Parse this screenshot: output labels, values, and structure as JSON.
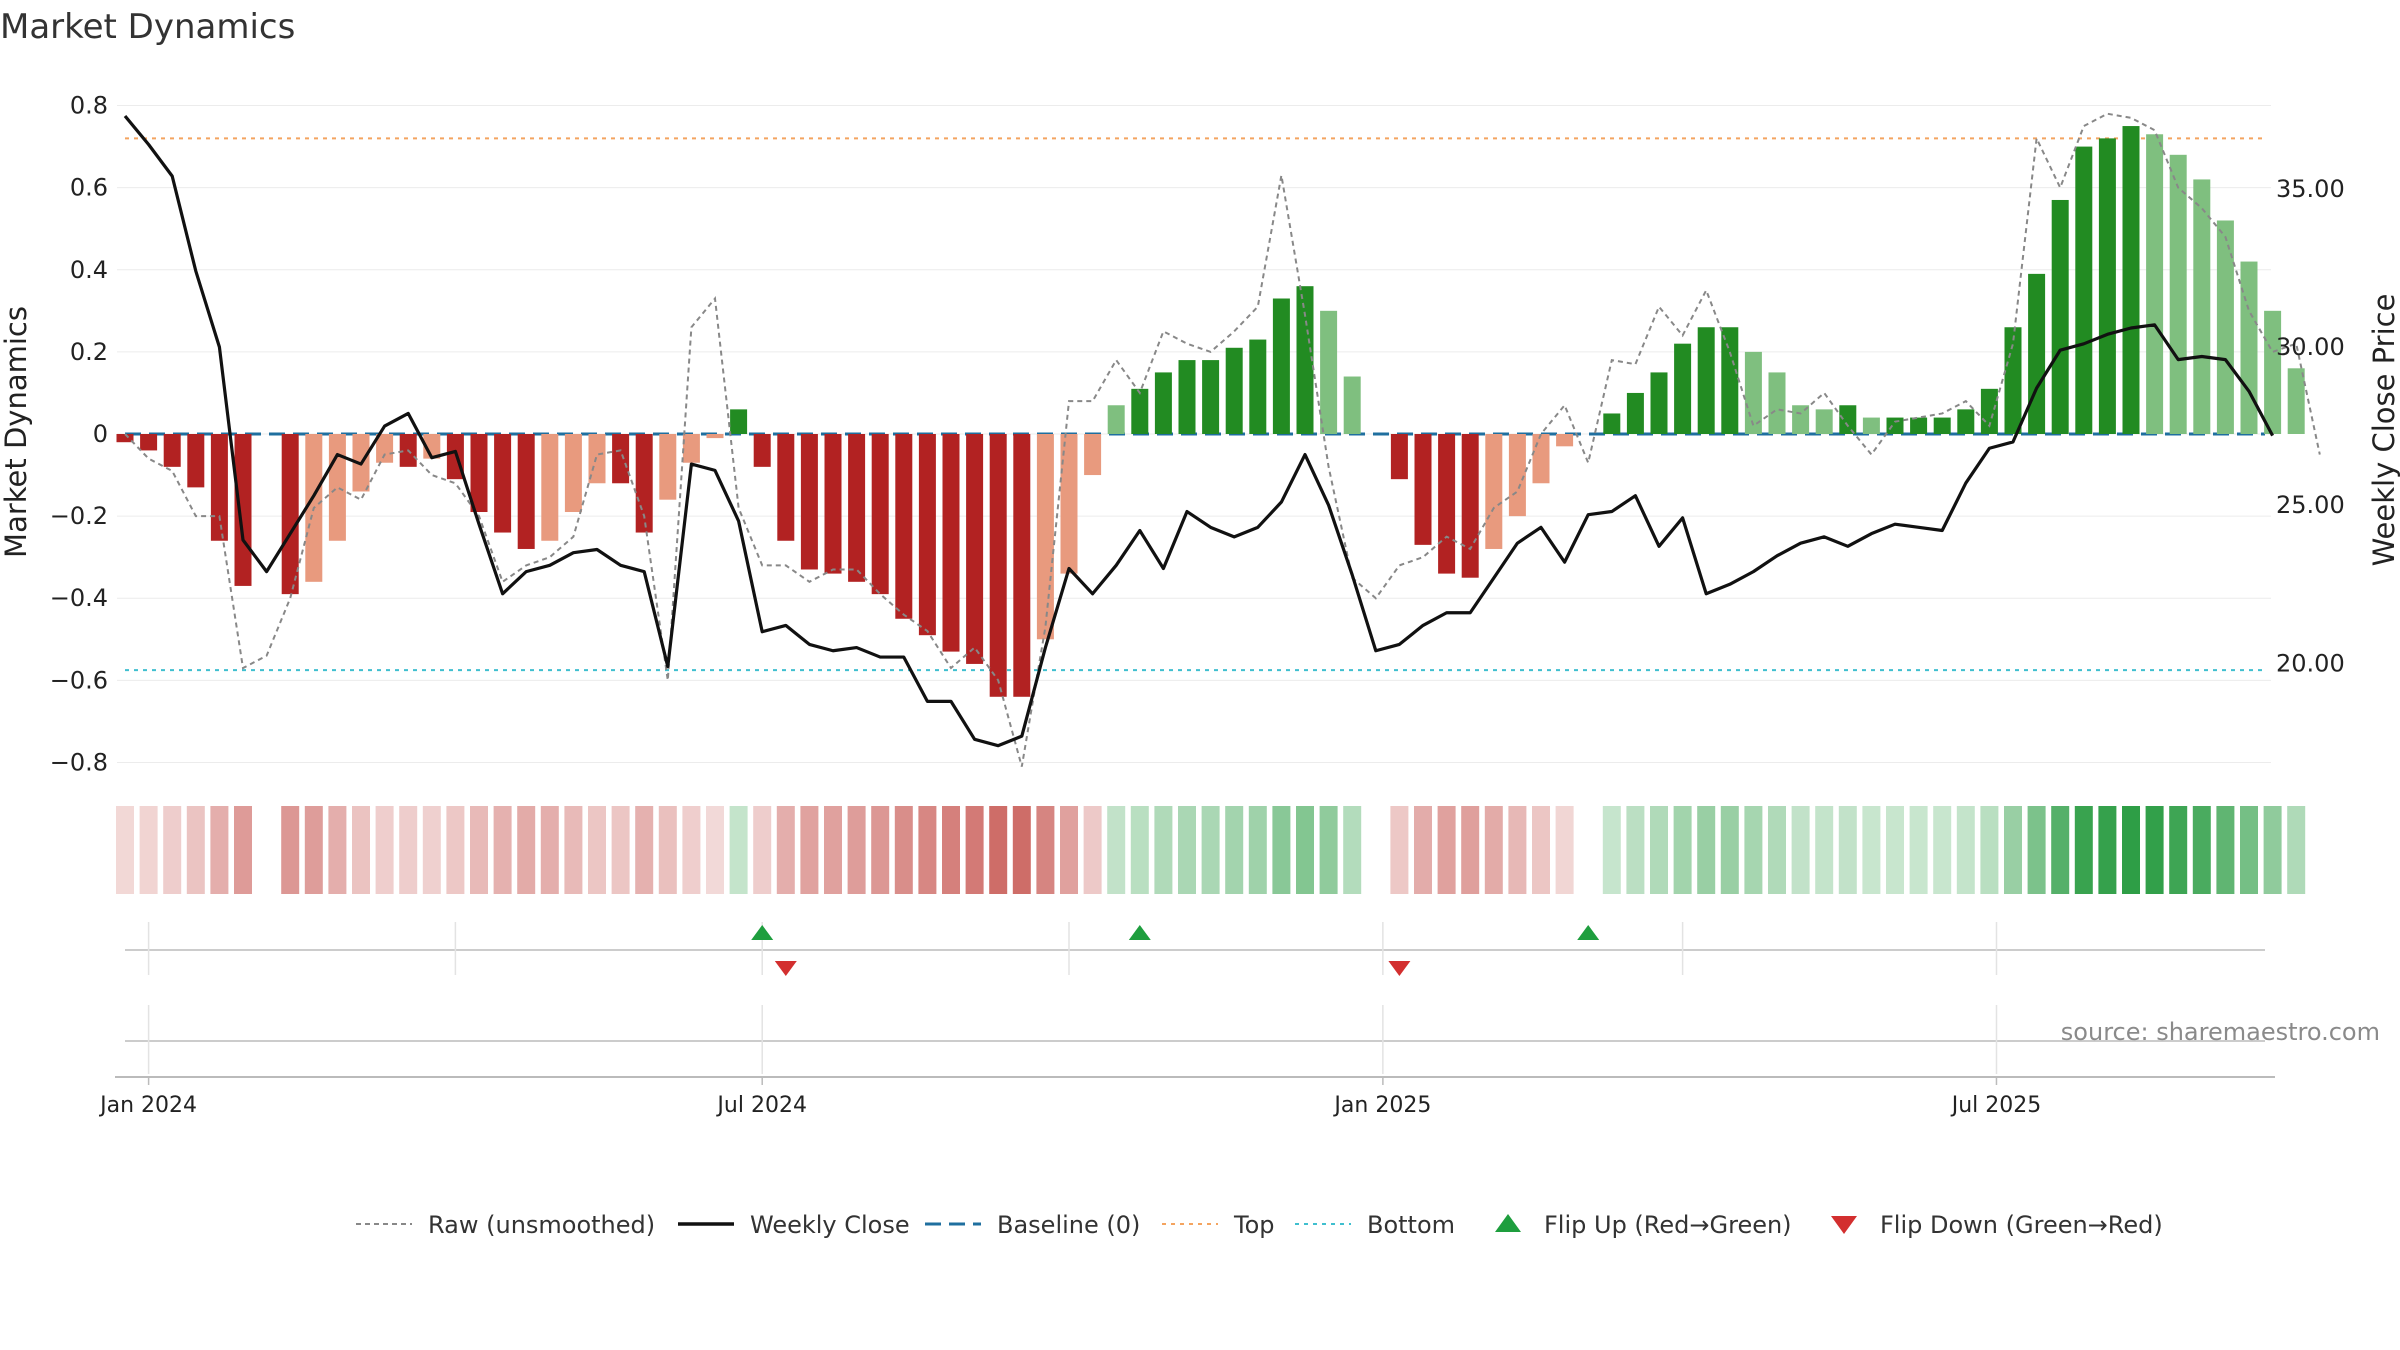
{
  "chart_data": {
    "type": "bar",
    "title": "Market Dynamics",
    "ylabel": "Market Dynamics",
    "y2label": "Weekly Close Price",
    "ylim": [
      -0.85,
      0.85
    ],
    "y2lim": [
      16.22,
      38.28
    ],
    "yticks": [
      "0.8",
      "0.6",
      "0.4",
      "0.2",
      "0",
      "−0.2",
      "−0.4",
      "−0.6",
      "−0.8"
    ],
    "yticks_values": [
      0.8,
      0.6,
      0.4,
      0.2,
      0,
      -0.2,
      -0.4,
      -0.6,
      -0.8
    ],
    "y2ticks": [
      "35.00",
      "30.00",
      "25.00",
      "20.00"
    ],
    "y2ticks_values": [
      35,
      30,
      25,
      20
    ],
    "top_level": 0.72,
    "bottom_level": -0.575,
    "baseline": 0,
    "x_start_week": -1,
    "x_ticks": [
      {
        "label": "Jan 2024",
        "week": 0
      },
      {
        "label": "Jul 2024",
        "week": 26
      },
      {
        "label": "Jan 2025",
        "week": 52.3
      },
      {
        "label": "Jul 2025",
        "week": 78.3
      }
    ],
    "series": [
      {
        "name": "Market Dynamics (smoothed)",
        "values": [
          -0.02,
          -0.04,
          -0.08,
          -0.13,
          -0.26,
          -0.37,
          0,
          -0.39,
          -0.36,
          -0.26,
          -0.14,
          -0.07,
          -0.08,
          -0.06,
          -0.11,
          -0.19,
          -0.24,
          -0.28,
          -0.26,
          -0.19,
          -0.12,
          -0.12,
          -0.24,
          -0.16,
          -0.07,
          -0.01,
          0.06,
          -0.08,
          -0.26,
          -0.33,
          -0.34,
          -0.36,
          -0.39,
          -0.45,
          -0.49,
          -0.53,
          -0.56,
          -0.64,
          -0.64,
          -0.5,
          -0.34,
          -0.1,
          0.07,
          0.11,
          0.15,
          0.18,
          0.18,
          0.21,
          0.23,
          0.33,
          0.36,
          0.3,
          0.14,
          0,
          -0.11,
          -0.27,
          -0.34,
          -0.35,
          -0.28,
          -0.2,
          -0.12,
          -0.03,
          0,
          0.05,
          0.1,
          0.15,
          0.22,
          0.26,
          0.26,
          0.2,
          0.15,
          0.07,
          0.06,
          0.07,
          0.04,
          0.04,
          0.04,
          0.04,
          0.06,
          0.11,
          0.26,
          0.39,
          0.57,
          0.7,
          0.72,
          0.75,
          0.73,
          0.68,
          0.62,
          0.52,
          0.42,
          0.3,
          0.16
        ]
      },
      {
        "name": "Raw (unsmoothed)",
        "values": [
          0,
          -0.06,
          -0.09,
          -0.2,
          -0.2,
          -0.57,
          -0.54,
          -0.4,
          -0.18,
          -0.13,
          -0.16,
          -0.05,
          -0.04,
          -0.1,
          -0.12,
          -0.2,
          -0.36,
          -0.32,
          -0.3,
          -0.25,
          -0.05,
          -0.04,
          -0.2,
          -0.6,
          0.26,
          0.33,
          -0.18,
          -0.32,
          -0.32,
          -0.36,
          -0.33,
          -0.33,
          -0.39,
          -0.44,
          -0.48,
          -0.57,
          -0.52,
          -0.6,
          -0.81,
          -0.47,
          0.08,
          0.08,
          0.18,
          0.1,
          0.25,
          0.22,
          0.2,
          0.25,
          0.31,
          0.63,
          0.29,
          -0.08,
          -0.35,
          -0.4,
          -0.32,
          -0.3,
          -0.25,
          -0.28,
          -0.18,
          -0.14,
          0,
          0.07,
          -0.07,
          0.18,
          0.17,
          0.31,
          0.24,
          0.35,
          0.2,
          0.02,
          0.06,
          0.05,
          0.1,
          0.02,
          -0.05,
          0.03,
          0.04,
          0.05,
          0.08,
          0.02,
          0.22,
          0.72,
          0.6,
          0.75,
          0.78,
          0.77,
          0.74,
          0.6,
          0.55,
          0.48,
          0.3,
          0.2,
          0.22,
          -0.05
        ]
      },
      {
        "name": "Weekly Close",
        "values": [
          37.3,
          36.4,
          35.4,
          32.4,
          30.0,
          23.9,
          22.9,
          24.1,
          25.3,
          26.6,
          26.3,
          27.5,
          27.9,
          26.5,
          26.7,
          24.4,
          22.2,
          22.9,
          23.1,
          23.5,
          23.6,
          23.1,
          22.9,
          19.9,
          26.3,
          26.1,
          24.5,
          21.0,
          21.2,
          20.6,
          20.4,
          20.5,
          20.2,
          20.2,
          18.8,
          18.8,
          17.6,
          17.4,
          17.7,
          20.5,
          23.0,
          22.2,
          23.1,
          24.2,
          23.0,
          24.8,
          24.3,
          24.0,
          24.3,
          25.1,
          26.6,
          25.0,
          22.8,
          20.4,
          20.6,
          21.2,
          21.6,
          21.6,
          22.7,
          23.8,
          24.3,
          23.2,
          24.7,
          24.8,
          25.3,
          23.7,
          24.6,
          22.2,
          22.5,
          22.9,
          23.4,
          23.8,
          24.0,
          23.7,
          24.1,
          24.4,
          24.3,
          24.2,
          25.7,
          26.8,
          27.0,
          28.7,
          29.9,
          30.1,
          30.4,
          30.6,
          30.7,
          29.6,
          29.7,
          29.6,
          28.6,
          27.2
        ]
      }
    ],
    "flip_up_weeks": [
      26,
      42,
      61
    ],
    "flip_down_weeks": [
      27,
      53
    ],
    "colors": {
      "bar_strong_red": "#b22222",
      "bar_light_red": "#e89a7e",
      "bar_strong_green": "#228b22",
      "bar_light_green": "#7fbf7f",
      "weekly_close": "#111111",
      "raw": "#888888",
      "baseline": "#1f6f9f",
      "top": "#f4a460",
      "bottom": "#3fbfcf",
      "flip_up": "#1e9e3e",
      "flip_down": "#d32f2f"
    },
    "legend": [
      {
        "key": "raw",
        "label": "Raw (unsmoothed)"
      },
      {
        "key": "close",
        "label": "Weekly Close"
      },
      {
        "key": "baseline",
        "label": "Baseline (0)"
      },
      {
        "key": "top",
        "label": "Top"
      },
      {
        "key": "bottom",
        "label": "Bottom"
      },
      {
        "key": "flipup",
        "label": "Flip Up (Red→Green)"
      },
      {
        "key": "flipdown",
        "label": "Flip Down (Green→Red)"
      }
    ],
    "legend_position": "bottom-center"
  },
  "source_text": "source: sharemaestro.com"
}
